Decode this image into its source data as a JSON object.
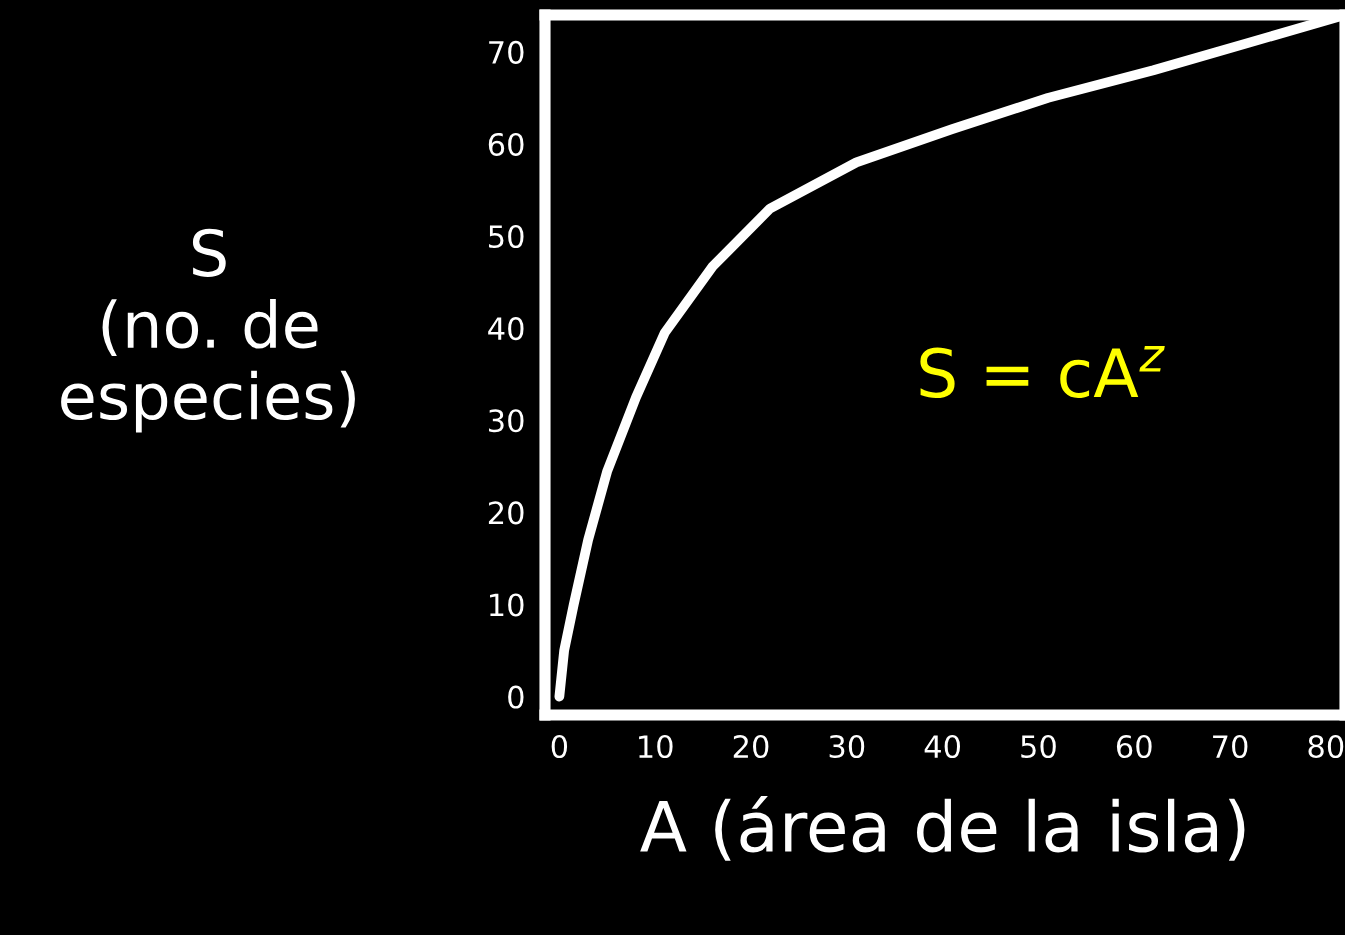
{
  "chart_data": {
    "type": "line",
    "xlabel": "A (área de la isla)",
    "ylabel": "S\n(no. de\nespecies)",
    "annotations": [
      "S = cA$^{z}$"
    ],
    "x": [
      0,
      0.5,
      1.5,
      3,
      5,
      8,
      11,
      16,
      22,
      31,
      41,
      51,
      62,
      72,
      82
    ],
    "series": [
      {
        "color": "#ffffff",
        "values": [
          0,
          5,
          10,
          17,
          24.5,
          32.5,
          39.5,
          46.7,
          53,
          58,
          61.6,
          65,
          68,
          71,
          74
        ]
      }
    ],
    "xlim": [
      -1.5,
      82
    ],
    "ylim": [
      -2,
      74
    ],
    "xticks": [
      0,
      10,
      20,
      30,
      40,
      50,
      60,
      70,
      80
    ],
    "yticks": [
      0,
      10,
      20,
      30,
      40,
      50,
      60,
      70
    ],
    "grid": false,
    "legend": false,
    "marker": "none",
    "line_style": "solid"
  }
}
